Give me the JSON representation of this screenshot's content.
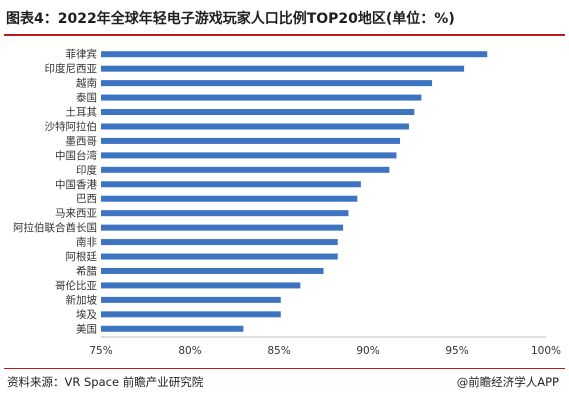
{
  "title": "图表4：2022年全球年轻电子游戏玩家人口比例TOP20地区(单位：%)",
  "footer": {
    "source": "资料来源：VR Space 前瞻产业研究院",
    "brand": "@前瞻经济学人APP"
  },
  "chart_data": {
    "type": "bar",
    "orientation": "horizontal",
    "title": "图表4：2022年全球年轻电子游戏玩家人口比例TOP20地区(单位：%)",
    "xlabel": "",
    "ylabel": "",
    "xlim": [
      75,
      100
    ],
    "tick_values": [
      75,
      80,
      85,
      90,
      95,
      100
    ],
    "tick_labels": [
      "75%",
      "80%",
      "85%",
      "90%",
      "95%",
      "100%"
    ],
    "grid": false,
    "bar_color": "#3d74c2",
    "categories": [
      "菲律宾",
      "印度尼西亚",
      "越南",
      "泰国",
      "土耳其",
      "沙特阿拉伯",
      "墨西哥",
      "中国台湾",
      "印度",
      "中国香港",
      "巴西",
      "马来西亚",
      "阿拉伯联合酋长国",
      "南非",
      "阿根廷",
      "希腊",
      "哥伦比亚",
      "新加坡",
      "埃及",
      "美国"
    ],
    "values": [
      96.7,
      95.4,
      93.6,
      93.0,
      92.6,
      92.3,
      91.8,
      91.6,
      91.2,
      89.6,
      89.4,
      88.9,
      88.6,
      88.3,
      88.3,
      87.5,
      86.2,
      85.1,
      85.1,
      83.0
    ]
  }
}
